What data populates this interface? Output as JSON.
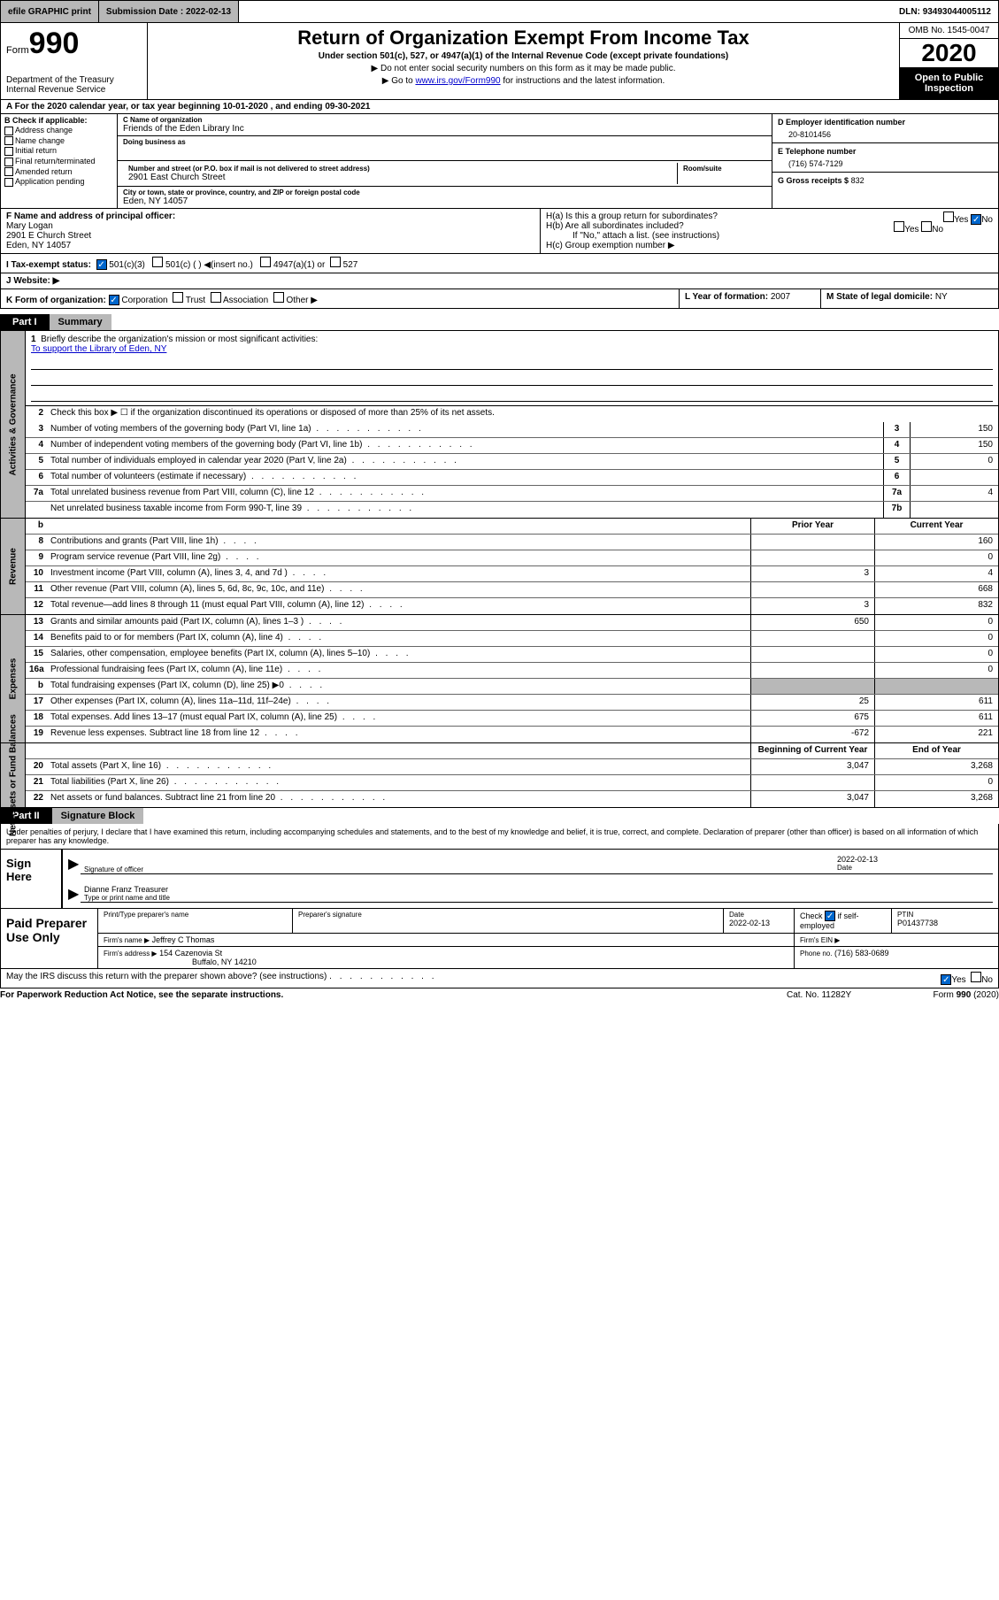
{
  "topbar": {
    "efile": "efile GRAPHIC print",
    "submission_label": "Submission Date :",
    "submission_date": "2022-02-13",
    "dln_label": "DLN:",
    "dln": "93493044005112"
  },
  "header": {
    "form_word": "Form",
    "form_num": "990",
    "dept": "Department of the Treasury\nInternal Revenue Service",
    "title": "Return of Organization Exempt From Income Tax",
    "subtitle": "Under section 501(c), 527, or 4947(a)(1) of the Internal Revenue Code (except private foundations)",
    "instr1": "▶ Do not enter social security numbers on this form as it may be made public.",
    "instr2_pre": "▶ Go to ",
    "instr2_link": "www.irs.gov/Form990",
    "instr2_post": " for instructions and the latest information.",
    "omb": "OMB No. 1545-0047",
    "year": "2020",
    "open_public": "Open to Public Inspection"
  },
  "line_a": "A For the 2020 calendar year, or tax year beginning 10-01-2020    , and ending 09-30-2021",
  "box_b": {
    "title": "B Check if applicable:",
    "opts": [
      "Address change",
      "Name change",
      "Initial return",
      "Final return/terminated",
      "Amended return",
      "Application pending"
    ]
  },
  "box_c": {
    "name_label": "C Name of organization",
    "name": "Friends of the Eden Library Inc",
    "dba_label": "Doing business as",
    "addr_label": "Number and street (or P.O. box if mail is not delivered to street address)",
    "room_label": "Room/suite",
    "addr": "2901 East Church Street",
    "city_label": "City or town, state or province, country, and ZIP or foreign postal code",
    "city": "Eden, NY  14057"
  },
  "box_d": {
    "label": "D Employer identification number",
    "val": "20-8101456"
  },
  "box_e": {
    "label": "E Telephone number",
    "val": "(716) 574-7129"
  },
  "box_g": {
    "label": "G Gross receipts $",
    "val": "832"
  },
  "box_f": {
    "label": "F Name and address of principal officer:",
    "name": "Mary Logan",
    "addr1": "2901 E Church Street",
    "addr2": "Eden, NY  14057"
  },
  "box_h": {
    "ha": "H(a)  Is this a group return for subordinates?",
    "hb": "H(b)  Are all subordinates included?",
    "hb_note": "If \"No,\" attach a list. (see instructions)",
    "hc": "H(c)  Group exemption number ▶"
  },
  "box_i": {
    "label": "I    Tax-exempt status:",
    "opt1": "501(c)(3)",
    "opt2": "501(c) (  ) ◀(insert no.)",
    "opt3": "4947(a)(1) or",
    "opt4": "527"
  },
  "box_j": "J    Website: ▶",
  "box_k": {
    "label": "K Form of organization:",
    "opts": [
      "Corporation",
      "Trust",
      "Association",
      "Other ▶"
    ]
  },
  "box_l": {
    "label": "L Year of formation:",
    "val": "2007"
  },
  "box_m": {
    "label": "M State of legal domicile:",
    "val": "NY"
  },
  "part1": {
    "tab": "Part I",
    "title": "Summary"
  },
  "summary": {
    "side1": "Activities & Governance",
    "side2": "Revenue",
    "side3": "Expenses",
    "side4": "Net Assets or Fund Balances",
    "q1": "Briefly describe the organization's mission or most significant activities:",
    "mission": "To support the Library of Eden, NY",
    "q2": "Check this box ▶ ☐  if the organization discontinued its operations or disposed of more than 25% of its net assets.",
    "rows_gov": [
      {
        "n": "3",
        "d": "Number of voting members of the governing body (Part VI, line 1a)",
        "box": "3",
        "v": "150"
      },
      {
        "n": "4",
        "d": "Number of independent voting members of the governing body (Part VI, line 1b)",
        "box": "4",
        "v": "150"
      },
      {
        "n": "5",
        "d": "Total number of individuals employed in calendar year 2020 (Part V, line 2a)",
        "box": "5",
        "v": "0"
      },
      {
        "n": "6",
        "d": "Total number of volunteers (estimate if necessary)",
        "box": "6",
        "v": ""
      },
      {
        "n": "7a",
        "d": "Total unrelated business revenue from Part VIII, column (C), line 12",
        "box": "7a",
        "v": "4"
      },
      {
        "n": "",
        "d": "Net unrelated business taxable income from Form 990-T, line 39",
        "box": "7b",
        "v": ""
      }
    ],
    "prior_label": "Prior Year",
    "curr_label": "Current Year",
    "b_label": "b",
    "rows_rev": [
      {
        "n": "8",
        "d": "Contributions and grants (Part VIII, line 1h)",
        "p": "",
        "c": "160"
      },
      {
        "n": "9",
        "d": "Program service revenue (Part VIII, line 2g)",
        "p": "",
        "c": "0"
      },
      {
        "n": "10",
        "d": "Investment income (Part VIII, column (A), lines 3, 4, and 7d )",
        "p": "3",
        "c": "4"
      },
      {
        "n": "11",
        "d": "Other revenue (Part VIII, column (A), lines 5, 6d, 8c, 9c, 10c, and 11e)",
        "p": "",
        "c": "668"
      },
      {
        "n": "12",
        "d": "Total revenue—add lines 8 through 11 (must equal Part VIII, column (A), line 12)",
        "p": "3",
        "c": "832"
      }
    ],
    "rows_exp": [
      {
        "n": "13",
        "d": "Grants and similar amounts paid (Part IX, column (A), lines 1–3 )",
        "p": "650",
        "c": "0"
      },
      {
        "n": "14",
        "d": "Benefits paid to or for members (Part IX, column (A), line 4)",
        "p": "",
        "c": "0"
      },
      {
        "n": "15",
        "d": "Salaries, other compensation, employee benefits (Part IX, column (A), lines 5–10)",
        "p": "",
        "c": "0"
      },
      {
        "n": "16a",
        "d": "Professional fundraising fees (Part IX, column (A), line 11e)",
        "p": "",
        "c": "0"
      },
      {
        "n": "b",
        "d": "Total fundraising expenses (Part IX, column (D), line 25) ▶0",
        "p": "shade",
        "c": "shade"
      },
      {
        "n": "17",
        "d": "Other expenses (Part IX, column (A), lines 11a–11d, 11f–24e)",
        "p": "25",
        "c": "611"
      },
      {
        "n": "18",
        "d": "Total expenses. Add lines 13–17 (must equal Part IX, column (A), line 25)",
        "p": "675",
        "c": "611"
      },
      {
        "n": "19",
        "d": "Revenue less expenses. Subtract line 18 from line 12",
        "p": "-672",
        "c": "221"
      }
    ],
    "begin_label": "Beginning of Current Year",
    "end_label": "End of Year",
    "rows_net": [
      {
        "n": "20",
        "d": "Total assets (Part X, line 16)",
        "p": "3,047",
        "c": "3,268"
      },
      {
        "n": "21",
        "d": "Total liabilities (Part X, line 26)",
        "p": "",
        "c": "0"
      },
      {
        "n": "22",
        "d": "Net assets or fund balances. Subtract line 21 from line 20",
        "p": "3,047",
        "c": "3,268"
      }
    ]
  },
  "part2": {
    "tab": "Part II",
    "title": "Signature Block"
  },
  "sig": {
    "perjury": "Under penalties of perjury, I declare that I have examined this return, including accompanying schedules and statements, and to the best of my knowledge and belief, it is true, correct, and complete. Declaration of preparer (other than officer) is based on all information of which preparer has any knowledge.",
    "sign_here": "Sign Here",
    "sig_officer": "Signature of officer",
    "date_label": "Date",
    "sig_date": "2022-02-13",
    "name_title": "Dianne Franz  Treasurer",
    "type_label": "Type or print name and title",
    "paid_prep": "Paid Preparer Use Only",
    "prep_name_label": "Print/Type preparer's name",
    "prep_sig_label": "Preparer's signature",
    "prep_date_label": "Date",
    "prep_date": "2022-02-13",
    "check_if": "Check ☑ if self-employed",
    "ptin_label": "PTIN",
    "ptin": "P01437738",
    "firm_name_label": "Firm's name      ▶",
    "firm_name": "Jeffrey C Thomas",
    "firm_ein_label": "Firm's EIN ▶",
    "firm_addr_label": "Firm's address ▶",
    "firm_addr": "154 Cazenovia St",
    "firm_city": "Buffalo, NY  14210",
    "phone_label": "Phone no.",
    "phone": "(716) 583-0689",
    "discuss": "May the IRS discuss this return with the preparer shown above? (see instructions)"
  },
  "footer": {
    "left": "For Paperwork Reduction Act Notice, see the separate instructions.",
    "mid": "Cat. No. 11282Y",
    "right": "Form 990 (2020)"
  },
  "yes": "Yes",
  "no": "No"
}
